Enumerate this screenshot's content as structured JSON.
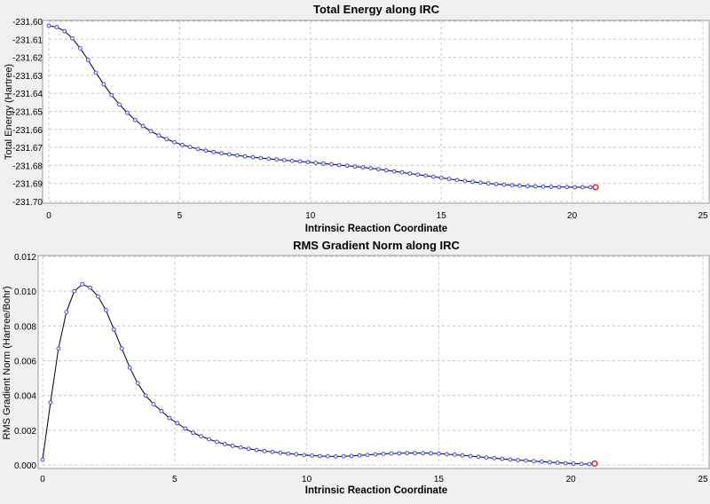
{
  "chart_data": [
    {
      "type": "line",
      "title": "Total Energy along IRC",
      "xlabel": "Intrinsic Reaction Coordinate",
      "ylabel": "Total Energy (Hartree)",
      "xlim": [
        0,
        25
      ],
      "ylim": [
        -231.7,
        -231.6
      ],
      "xticks": [
        "0",
        "5",
        "10",
        "15",
        "20",
        "25"
      ],
      "yticks": [
        "-231.60",
        "-231.61",
        "-231.62",
        "-231.63",
        "-231.64",
        "-231.65",
        "-231.66",
        "-231.67",
        "-231.68",
        "-231.69",
        "-231.70"
      ],
      "grid": true,
      "series": [
        {
          "x": [
            0,
            0.3,
            0.6,
            0.9,
            1.2,
            1.5,
            1.8,
            2.1,
            2.4,
            2.7,
            3,
            3.3,
            3.6,
            3.9,
            4.2,
            4.5,
            4.8,
            5.1,
            5.4,
            5.7,
            6,
            6.3,
            6.6,
            6.9,
            7.2,
            7.5,
            7.8,
            8.1,
            8.4,
            8.7,
            9,
            9.3,
            9.6,
            9.9,
            10.2,
            10.5,
            10.8,
            11.1,
            11.4,
            11.7,
            12,
            12.3,
            12.6,
            12.9,
            13.2,
            13.5,
            13.8,
            14.1,
            14.4,
            14.7,
            15,
            15.3,
            15.6,
            15.9,
            16.2,
            16.5,
            16.8,
            17.1,
            17.4,
            17.7,
            18,
            18.3,
            18.6,
            18.9,
            19.2,
            19.5,
            19.8,
            20.1,
            20.4,
            20.7,
            20.9
          ],
          "y": [
            -231.6025,
            -231.6032,
            -231.6055,
            -231.6095,
            -231.615,
            -231.6215,
            -231.6285,
            -231.635,
            -231.641,
            -231.6462,
            -231.6508,
            -231.6548,
            -231.6582,
            -231.661,
            -231.6634,
            -231.6654,
            -231.6671,
            -231.6686,
            -231.6698,
            -231.6709,
            -231.6718,
            -231.6726,
            -231.6733,
            -231.6739,
            -231.6745,
            -231.675,
            -231.6755,
            -231.6759,
            -231.6763,
            -231.6767,
            -231.6771,
            -231.6775,
            -231.6778,
            -231.6782,
            -231.6786,
            -231.679,
            -231.6794,
            -231.6798,
            -231.6802,
            -231.6806,
            -231.6811,
            -231.6816,
            -231.6821,
            -231.6827,
            -231.6833,
            -231.6839,
            -231.6845,
            -231.6851,
            -231.6857,
            -231.6863,
            -231.6869,
            -231.6875,
            -231.6881,
            -231.6886,
            -231.6891,
            -231.6896,
            -231.69,
            -231.6904,
            -231.6907,
            -231.691,
            -231.6913,
            -231.6915,
            -231.6917,
            -231.6918,
            -231.6919,
            -231.692,
            -231.692,
            -231.6921,
            -231.6921,
            -231.6921,
            -231.6921
          ]
        }
      ]
    },
    {
      "type": "line",
      "title": "RMS Gradient Norm along IRC",
      "xlabel": "Intrinsic Reaction Coordinate",
      "ylabel": "RMS Gradient Norm (Hartree/Bohr)",
      "xlim": [
        0,
        25
      ],
      "ylim": [
        0,
        0.012
      ],
      "xticks": [
        "0",
        "5",
        "10",
        "15",
        "20",
        "25"
      ],
      "yticks": [
        "0.000",
        "0.002",
        "0.004",
        "0.006",
        "0.008",
        "0.010",
        "0.012"
      ],
      "grid": true,
      "series": [
        {
          "x": [
            0,
            0.3,
            0.6,
            0.9,
            1.2,
            1.5,
            1.8,
            2.1,
            2.4,
            2.7,
            3,
            3.3,
            3.6,
            3.9,
            4.2,
            4.5,
            4.8,
            5.1,
            5.4,
            5.7,
            6,
            6.3,
            6.6,
            6.9,
            7.2,
            7.5,
            7.8,
            8.1,
            8.4,
            8.7,
            9,
            9.3,
            9.6,
            9.9,
            10.2,
            10.5,
            10.8,
            11.1,
            11.4,
            11.7,
            12,
            12.3,
            12.6,
            12.9,
            13.2,
            13.5,
            13.8,
            14.1,
            14.4,
            14.7,
            15,
            15.3,
            15.6,
            15.9,
            16.2,
            16.5,
            16.8,
            17.1,
            17.4,
            17.7,
            18,
            18.3,
            18.6,
            18.9,
            19.2,
            19.5,
            19.8,
            20.1,
            20.4,
            20.7,
            20.9
          ],
          "y": [
            0.0003,
            0.0036,
            0.0067,
            0.0088,
            0.01,
            0.0104,
            0.0102,
            0.0097,
            0.0089,
            0.0078,
            0.0067,
            0.0056,
            0.0047,
            0.004,
            0.0035,
            0.0031,
            0.0027,
            0.0024,
            0.0021,
            0.00185,
            0.00165,
            0.00148,
            0.00133,
            0.0012,
            0.0011,
            0.00101,
            0.00093,
            0.00086,
            0.0008,
            0.00075,
            0.0007,
            0.00065,
            0.00061,
            0.00057,
            0.00054,
            0.00051,
            0.0005,
            0.00049,
            0.0005,
            0.00052,
            0.00055,
            0.00058,
            0.00061,
            0.00064,
            0.00066,
            0.00067,
            0.00068,
            0.00068,
            0.00068,
            0.00067,
            0.00065,
            0.00062,
            0.00059,
            0.00055,
            0.00051,
            0.00047,
            0.00043,
            0.00039,
            0.00035,
            0.00031,
            0.00028,
            0.00025,
            0.00022,
            0.00019,
            0.00016,
            0.00013,
            0.0001,
            8e-05,
            6e-05,
            5e-05,
            8e-05
          ]
        }
      ]
    }
  ],
  "colors": {
    "line": "#000000",
    "marker": "#4444ff",
    "last_marker": "#d42020",
    "grid": "#c8c8c8",
    "plot_bg": "#ffffff",
    "page_bg": "#f0f0f0"
  }
}
